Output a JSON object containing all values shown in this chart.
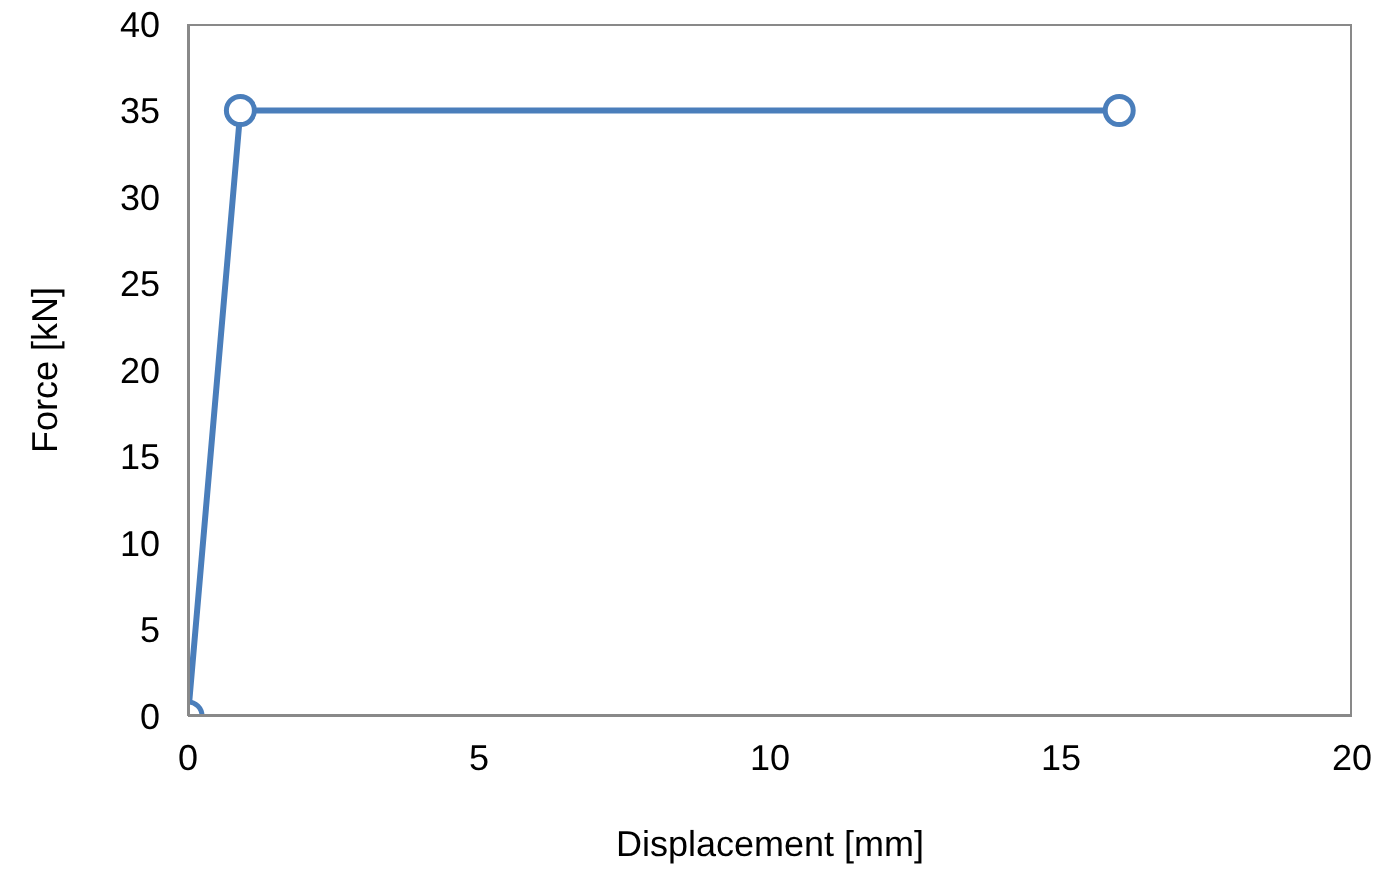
{
  "chart_data": {
    "type": "line",
    "xlabel": "Displacement [mm]",
    "ylabel": "Force [kN]",
    "series": [
      {
        "color": "#4a7ebb",
        "x": [
          0,
          0.9,
          16
        ],
        "values": [
          0,
          35,
          35
        ]
      }
    ],
    "xlim": [
      0,
      20
    ],
    "xticks": [
      0,
      5,
      10,
      15,
      20
    ],
    "ylim": [
      0,
      40
    ],
    "yticks": [
      0,
      5,
      10,
      15,
      20,
      25,
      30,
      35,
      40
    ],
    "grid": false,
    "legend": false,
    "marker": "circle",
    "line_style": "solid"
  }
}
